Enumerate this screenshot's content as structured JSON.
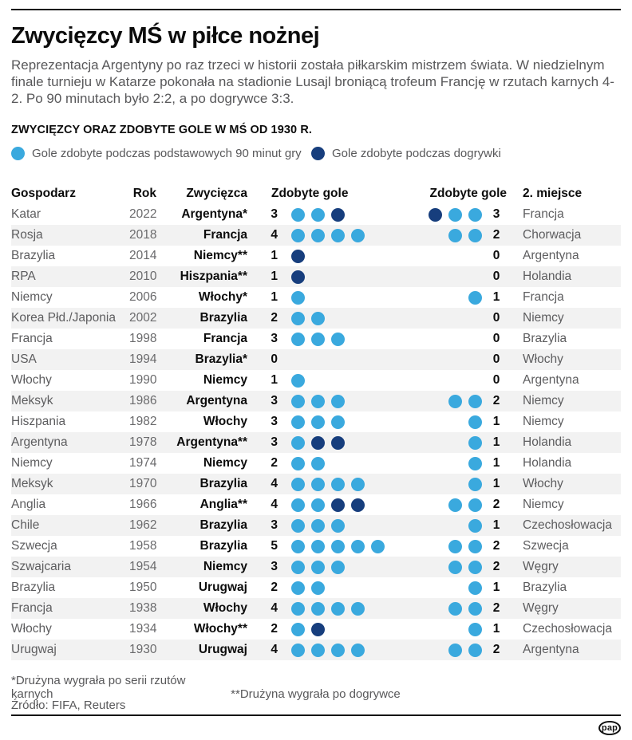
{
  "page": {
    "title": "Zwycięzcy MŚ w piłce nożnej",
    "intro": "Reprezentacja Argentyny po raz trzeci w historii została piłkarskim mistrzem świata. W niedzielnym finale turnieju w Katarze pokonała na stadionie Lusajl broniącą trofeum Francję w rzutach karnych 4-2. Po 90 minutach było 2:2, a po dogrywce 3:3.",
    "section_title": "ZWYCIĘZCY ORAZ ZDOBYTE GOLE W MŚ OD 1930 R.",
    "footnote_penalties": "*Drużyna wygrała po serii rzutów karnych",
    "footnote_extratime": "**Drużyna wygrała po dogrywce",
    "source": "Źródło: FIFA, Reuters",
    "logo": "pap"
  },
  "legend": {
    "regular_label": "Gole zdobyte podczas podstawowych 90 minut gry",
    "extra_label": "Gole zdobyte podczas dogrywki"
  },
  "colors": {
    "regular": "#3AA9DE",
    "extra": "#173E7D"
  },
  "chart_data": {
    "type": "table",
    "title": "ZWYCIĘZCY ORAZ ZDOBYTE GOLE W MŚ OD 1930 R.",
    "legend_entries": [
      "Gole zdobyte podczas podstawowych 90 minut gry",
      "Gole zdobyte podczas dogrywki"
    ],
    "columns": [
      "Gospodarz",
      "Rok",
      "Zwycięzca",
      "Zdobyte gole",
      "Zdobyte gole",
      "2. miejsce"
    ],
    "dot_legend": {
      "regular": "gol w podstawowych 90 minutach",
      "extra": "gol w dogrywce"
    },
    "rows": [
      {
        "host": "Katar",
        "year": "2022",
        "winner": "Argentyna*",
        "winner_goals": "3",
        "winner_dots": [
          "regular",
          "regular",
          "extra"
        ],
        "runner_dots": [
          "extra",
          "regular",
          "regular"
        ],
        "runner_goals": "3",
        "runner_up": "Francja"
      },
      {
        "host": "Rosja",
        "year": "2018",
        "winner": "Francja",
        "winner_goals": "4",
        "winner_dots": [
          "regular",
          "regular",
          "regular",
          "regular"
        ],
        "runner_dots": [
          "regular",
          "regular"
        ],
        "runner_goals": "2",
        "runner_up": "Chorwacja"
      },
      {
        "host": "Brazylia",
        "year": "2014",
        "winner": "Niemcy**",
        "winner_goals": "1",
        "winner_dots": [
          "extra"
        ],
        "runner_dots": [],
        "runner_goals": "0",
        "runner_up": "Argentyna"
      },
      {
        "host": "RPA",
        "year": "2010",
        "winner": "Hiszpania**",
        "winner_goals": "1",
        "winner_dots": [
          "extra"
        ],
        "runner_dots": [],
        "runner_goals": "0",
        "runner_up": "Holandia"
      },
      {
        "host": "Niemcy",
        "year": "2006",
        "winner": "Włochy*",
        "winner_goals": "1",
        "winner_dots": [
          "regular"
        ],
        "runner_dots": [
          "regular"
        ],
        "runner_goals": "1",
        "runner_up": "Francja"
      },
      {
        "host": "Korea Płd./Japonia",
        "year": "2002",
        "winner": "Brazylia",
        "winner_goals": "2",
        "winner_dots": [
          "regular",
          "regular"
        ],
        "runner_dots": [],
        "runner_goals": "0",
        "runner_up": "Niemcy"
      },
      {
        "host": "Francja",
        "year": "1998",
        "winner": "Francja",
        "winner_goals": "3",
        "winner_dots": [
          "regular",
          "regular",
          "regular"
        ],
        "runner_dots": [],
        "runner_goals": "0",
        "runner_up": "Brazylia"
      },
      {
        "host": "USA",
        "year": "1994",
        "winner": "Brazylia*",
        "winner_goals": "0",
        "winner_dots": [],
        "runner_dots": [],
        "runner_goals": "0",
        "runner_up": "Włochy"
      },
      {
        "host": "Włochy",
        "year": "1990",
        "winner": "Niemcy",
        "winner_goals": "1",
        "winner_dots": [
          "regular"
        ],
        "runner_dots": [],
        "runner_goals": "0",
        "runner_up": "Argentyna"
      },
      {
        "host": "Meksyk",
        "year": "1986",
        "winner": "Argentyna",
        "winner_goals": "3",
        "winner_dots": [
          "regular",
          "regular",
          "regular"
        ],
        "runner_dots": [
          "regular",
          "regular"
        ],
        "runner_goals": "2",
        "runner_up": "Niemcy"
      },
      {
        "host": "Hiszpania",
        "year": "1982",
        "winner": "Włochy",
        "winner_goals": "3",
        "winner_dots": [
          "regular",
          "regular",
          "regular"
        ],
        "runner_dots": [
          "regular"
        ],
        "runner_goals": "1",
        "runner_up": "Niemcy"
      },
      {
        "host": "Argentyna",
        "year": "1978",
        "winner": "Argentyna**",
        "winner_goals": "3",
        "winner_dots": [
          "regular",
          "extra",
          "extra"
        ],
        "runner_dots": [
          "regular"
        ],
        "runner_goals": "1",
        "runner_up": "Holandia"
      },
      {
        "host": "Niemcy",
        "year": "1974",
        "winner": "Niemcy",
        "winner_goals": "2",
        "winner_dots": [
          "regular",
          "regular"
        ],
        "runner_dots": [
          "regular"
        ],
        "runner_goals": "1",
        "runner_up": "Holandia"
      },
      {
        "host": "Meksyk",
        "year": "1970",
        "winner": "Brazylia",
        "winner_goals": "4",
        "winner_dots": [
          "regular",
          "regular",
          "regular",
          "regular"
        ],
        "runner_dots": [
          "regular"
        ],
        "runner_goals": "1",
        "runner_up": "Włochy"
      },
      {
        "host": "Anglia",
        "year": "1966",
        "winner": "Anglia**",
        "winner_goals": "4",
        "winner_dots": [
          "regular",
          "regular",
          "extra",
          "extra"
        ],
        "runner_dots": [
          "regular",
          "regular"
        ],
        "runner_goals": "2",
        "runner_up": "Niemcy"
      },
      {
        "host": "Chile",
        "year": "1962",
        "winner": "Brazylia",
        "winner_goals": "3",
        "winner_dots": [
          "regular",
          "regular",
          "regular"
        ],
        "runner_dots": [
          "regular"
        ],
        "runner_goals": "1",
        "runner_up": "Czechosłowacja"
      },
      {
        "host": "Szwecja",
        "year": "1958",
        "winner": "Brazylia",
        "winner_goals": "5",
        "winner_dots": [
          "regular",
          "regular",
          "regular",
          "regular",
          "regular"
        ],
        "runner_dots": [
          "regular",
          "regular"
        ],
        "runner_goals": "2",
        "runner_up": "Szwecja"
      },
      {
        "host": "Szwajcaria",
        "year": "1954",
        "winner": "Niemcy",
        "winner_goals": "3",
        "winner_dots": [
          "regular",
          "regular",
          "regular"
        ],
        "runner_dots": [
          "regular",
          "regular"
        ],
        "runner_goals": "2",
        "runner_up": "Węgry"
      },
      {
        "host": "Brazylia",
        "year": "1950",
        "winner": "Urugwaj",
        "winner_goals": "2",
        "winner_dots": [
          "regular",
          "regular"
        ],
        "runner_dots": [
          "regular"
        ],
        "runner_goals": "1",
        "runner_up": "Brazylia"
      },
      {
        "host": "Francja",
        "year": "1938",
        "winner": "Włochy",
        "winner_goals": "4",
        "winner_dots": [
          "regular",
          "regular",
          "regular",
          "regular"
        ],
        "runner_dots": [
          "regular",
          "regular"
        ],
        "runner_goals": "2",
        "runner_up": "Węgry"
      },
      {
        "host": "Włochy",
        "year": "1934",
        "winner": "Włochy**",
        "winner_goals": "2",
        "winner_dots": [
          "regular",
          "extra"
        ],
        "runner_dots": [
          "regular"
        ],
        "runner_goals": "1",
        "runner_up": "Czechosłowacja"
      },
      {
        "host": "Urugwaj",
        "year": "1930",
        "winner": "Urugwaj",
        "winner_goals": "4",
        "winner_dots": [
          "regular",
          "regular",
          "regular",
          "regular"
        ],
        "runner_dots": [
          "regular",
          "regular"
        ],
        "runner_goals": "2",
        "runner_up": "Argentyna"
      }
    ]
  }
}
